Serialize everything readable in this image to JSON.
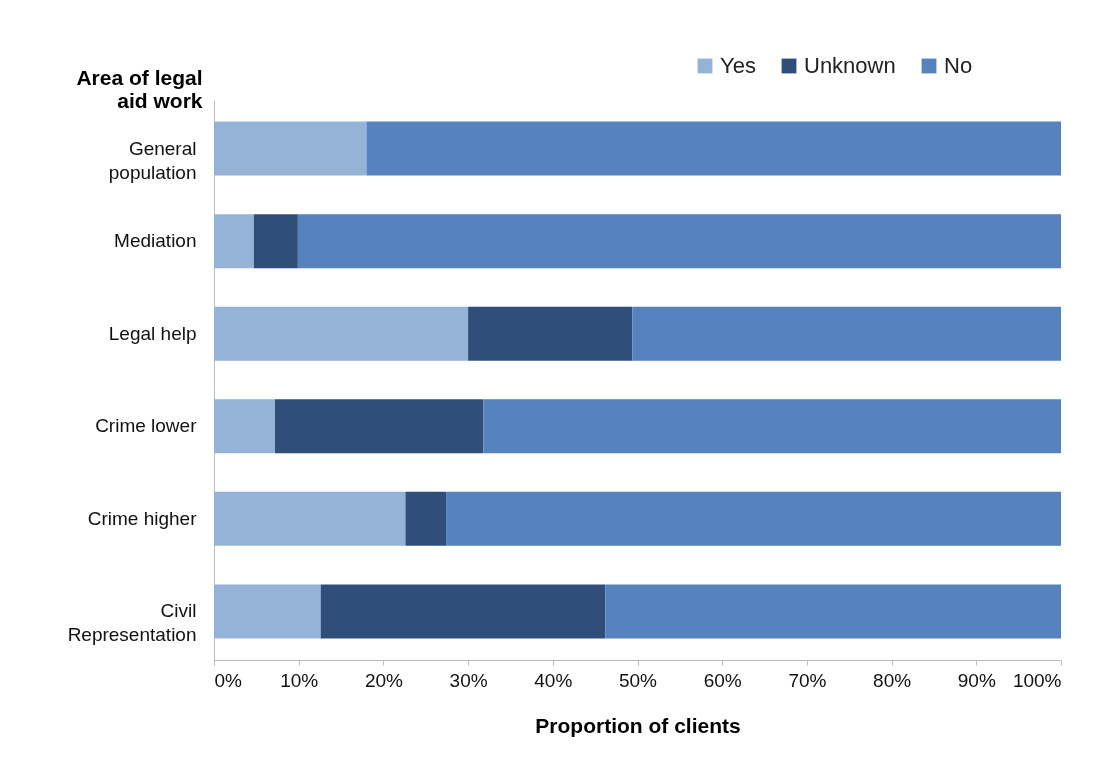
{
  "chart_data": {
    "type": "bar",
    "orientation": "horizontal",
    "stacked": true,
    "ylabel": "Area of legal aid work",
    "xlabel": "Proportion of clients",
    "categories": [
      "General population",
      "Mediation",
      "Legal help",
      "Crime lower",
      "Crime higher",
      "Civil Representation"
    ],
    "series": [
      {
        "name": "Yes",
        "color": "#95b3d7",
        "values": [
          18,
          4.7,
          30,
          7.2,
          22.6,
          12.6
        ]
      },
      {
        "name": "Unknown",
        "color": "#2f4f7a",
        "values": [
          0,
          5.2,
          19.4,
          24.6,
          4.8,
          33.6
        ]
      },
      {
        "name": "No",
        "color": "#5682be",
        "values": [
          82,
          90.1,
          50.6,
          68.2,
          72.6,
          53.8
        ]
      }
    ],
    "xlim": [
      0,
      100
    ],
    "xticks": [
      {
        "value": 0,
        "label": "0%"
      },
      {
        "value": 10,
        "label": "10%"
      },
      {
        "value": 20,
        "label": "20%"
      },
      {
        "value": 30,
        "label": "30%"
      },
      {
        "value": 40,
        "label": "40%"
      },
      {
        "value": 50,
        "label": "50%"
      },
      {
        "value": 60,
        "label": "60%"
      },
      {
        "value": 70,
        "label": "70%"
      },
      {
        "value": 80,
        "label": "80%"
      },
      {
        "value": 90,
        "label": "90%"
      },
      {
        "value": 100,
        "label": "100%"
      }
    ],
    "legend": "top right",
    "grid": false
  }
}
